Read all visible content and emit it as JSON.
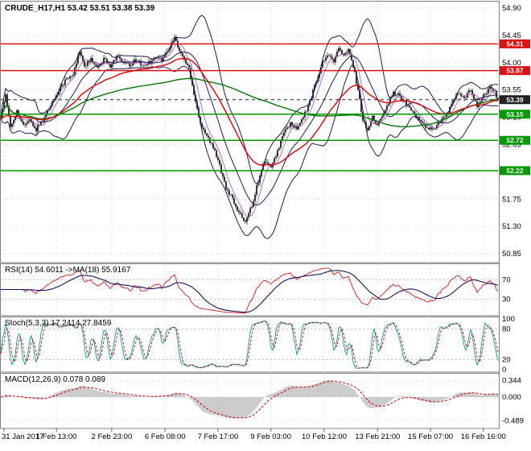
{
  "title": "CRUDE_H17,H1 53.42 53.51 53.38 53.39",
  "panes": {
    "rsi_label": "RSI(14) 54.6011 ->MA(18) 55.9167",
    "stoch_label": "Stoch(5,3,3) 17.2414 27.8459",
    "macd_label": "MACD(12,26,9) 0.078 0.089"
  },
  "colors": {
    "candle": "#111111",
    "bollinger": "#1a1a5e",
    "ma_red": "#dd0000",
    "ma_green": "#007700",
    "ma_magenta": "#bb44bb",
    "rsi_line": "#cc0000",
    "rsi_ma": "#101060",
    "stoch_k": "#009999",
    "stoch_d": "#cc0000",
    "macd_hist": "#9a9a9a",
    "macd_signal": "#cc0000",
    "grid": "#d4d4d4",
    "frame": "#808080",
    "level_red": "#dd1111",
    "level_green": "#009900",
    "level_current": "#222222"
  },
  "chart_data": {
    "type": "candlestick",
    "symbol": "CRUDE_H17",
    "timeframe": "H1",
    "current_bar": {
      "open": 53.42,
      "high": 53.51,
      "low": 53.38,
      "close": 53.39
    },
    "ymax": 55.02,
    "ymin": 50.705,
    "y_ticks": [
      "54.90",
      "54.45",
      "54.00",
      "53.55",
      "53.10",
      "52.65",
      "52.20",
      "51.75",
      "51.30",
      "50.85"
    ],
    "x_labels": [
      {
        "t": "31 Jan 2017",
        "f": 0.008
      },
      {
        "t": "1 Feb 13:00",
        "f": 0.113
      },
      {
        "t": "2 Feb 23:00",
        "f": 0.224
      },
      {
        "t": "6 Feb 08:00",
        "f": 0.331
      },
      {
        "t": "7 Feb 17:00",
        "f": 0.437
      },
      {
        "t": "9 Feb 03:00",
        "f": 0.543
      },
      {
        "t": "10 Feb 12:00",
        "f": 0.65
      },
      {
        "t": "13 Feb 21:00",
        "f": 0.757
      },
      {
        "t": "15 Feb 07:00",
        "f": 0.863
      },
      {
        "t": "16 Feb 16:00",
        "f": 0.969
      }
    ],
    "levels": [
      {
        "price": 54.31,
        "label": "54.31",
        "color": "#dd1111",
        "style": "solid"
      },
      {
        "price": 53.87,
        "label": "53.87",
        "color": "#dd1111",
        "style": "solid"
      },
      {
        "price": 53.39,
        "label": "53.39",
        "color": "#222222",
        "style": "dashed"
      },
      {
        "price": 53.15,
        "label": "53.15",
        "color": "#009900",
        "style": "solid"
      },
      {
        "price": 52.72,
        "label": "52.72",
        "color": "#009900",
        "style": "solid"
      },
      {
        "price": 52.22,
        "label": "52.22",
        "color": "#009900",
        "style": "solid"
      }
    ],
    "bars": 310,
    "noise": 0.07,
    "price_path": [
      [
        0,
        53.1
      ],
      [
        3,
        53.45
      ],
      [
        6,
        52.95
      ],
      [
        10,
        53.2
      ],
      [
        14,
        52.95
      ],
      [
        18,
        53.05
      ],
      [
        22,
        52.9
      ],
      [
        27,
        53.1
      ],
      [
        32,
        53.35
      ],
      [
        36,
        53.55
      ],
      [
        40,
        53.7
      ],
      [
        45,
        53.8
      ],
      [
        49,
        54.2
      ],
      [
        52,
        53.95
      ],
      [
        56,
        54.05
      ],
      [
        60,
        53.9
      ],
      [
        64,
        54.05
      ],
      [
        68,
        53.95
      ],
      [
        72,
        54.1
      ],
      [
        76,
        54.0
      ],
      [
        80,
        53.95
      ],
      [
        84,
        54.05
      ],
      [
        88,
        53.95
      ],
      [
        92,
        54.0
      ],
      [
        96,
        54.1
      ],
      [
        100,
        54.05
      ],
      [
        104,
        54.2
      ],
      [
        108,
        54.42
      ],
      [
        111,
        54.2
      ],
      [
        114,
        54.05
      ],
      [
        117,
        53.9
      ],
      [
        120,
        53.5
      ],
      [
        124,
        53.0
      ],
      [
        128,
        52.8
      ],
      [
        132,
        52.6
      ],
      [
        136,
        52.3
      ],
      [
        140,
        51.95
      ],
      [
        144,
        51.75
      ],
      [
        148,
        51.5
      ],
      [
        152,
        51.4
      ],
      [
        156,
        51.65
      ],
      [
        160,
        52.05
      ],
      [
        164,
        52.4
      ],
      [
        168,
        52.25
      ],
      [
        172,
        52.55
      ],
      [
        176,
        52.85
      ],
      [
        180,
        53.0
      ],
      [
        184,
        52.9
      ],
      [
        188,
        53.1
      ],
      [
        192,
        53.35
      ],
      [
        196,
        53.7
      ],
      [
        200,
        54.0
      ],
      [
        204,
        54.15
      ],
      [
        207,
        54.0
      ],
      [
        210,
        54.25
      ],
      [
        213,
        54.1
      ],
      [
        216,
        54.2
      ],
      [
        219,
        53.95
      ],
      [
        222,
        53.55
      ],
      [
        225,
        53.05
      ],
      [
        228,
        52.9
      ],
      [
        231,
        53.1
      ],
      [
        234,
        52.95
      ],
      [
        237,
        53.15
      ],
      [
        240,
        53.3
      ],
      [
        244,
        53.5
      ],
      [
        248,
        53.45
      ],
      [
        252,
        53.3
      ],
      [
        256,
        53.2
      ],
      [
        260,
        53.05
      ],
      [
        264,
        52.95
      ],
      [
        268,
        52.9
      ],
      [
        272,
        53.0
      ],
      [
        276,
        53.1
      ],
      [
        280,
        53.3
      ],
      [
        284,
        53.5
      ],
      [
        288,
        53.4
      ],
      [
        292,
        53.55
      ],
      [
        296,
        53.3
      ],
      [
        300,
        53.45
      ],
      [
        304,
        53.6
      ],
      [
        307,
        53.5
      ],
      [
        309,
        53.39
      ]
    ],
    "overlays": {
      "bollinger_period": 20,
      "bollinger_dev": 2,
      "ma_red_period": 48,
      "ma_green_period": 130,
      "ma_magenta_period": 7
    },
    "rsi": {
      "period": 14,
      "ma_period": 18,
      "value": 54.6011,
      "ma_value": 55.9167,
      "levels": [
        70,
        30
      ]
    },
    "stoch": {
      "k_period": 5,
      "d_period": 3,
      "slowing": 3,
      "k_value": 17.2414,
      "d_value": 27.8459,
      "scale_labels": [
        100,
        80,
        20,
        0
      ],
      "dashed_levels": [
        80,
        20
      ]
    },
    "macd": {
      "fast": 12,
      "slow": 26,
      "signal_period": 9,
      "value": 0.078,
      "signal_value": 0.089,
      "ticks": [
        {
          "label": "0.344",
          "v": 0.344
        },
        {
          "label": "0.000",
          "v": 0
        },
        {
          "label": "-0.489",
          "v": -0.489
        }
      ]
    }
  }
}
